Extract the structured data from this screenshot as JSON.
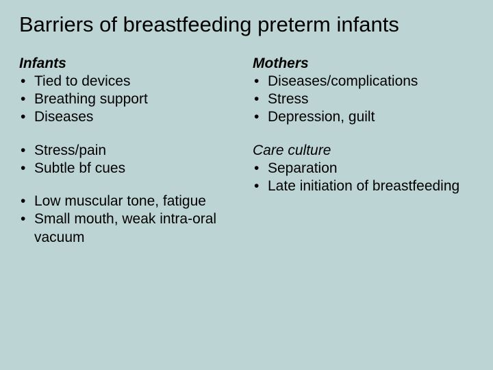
{
  "background_color": "#bcd4d4",
  "text_color": "#000000",
  "title": "Barriers of breastfeeding preterm infants",
  "title_fontsize": 31,
  "body_fontsize": 21,
  "left": {
    "heading": "Infants",
    "group1": [
      "Tied to devices",
      "Breathing support",
      "Diseases"
    ],
    "group2": [
      "Stress/pain",
      "Subtle bf cues"
    ],
    "group3": [
      "Low muscular tone, fatigue",
      "Small mouth, weak intra-oral vacuum"
    ]
  },
  "right": {
    "heading1": "Mothers",
    "mothers": [
      "Diseases/complications",
      "Stress",
      "Depression, guilt"
    ],
    "heading2": "Care culture",
    "care": [
      "Separation",
      "Late initiation of breastfeeding"
    ]
  }
}
